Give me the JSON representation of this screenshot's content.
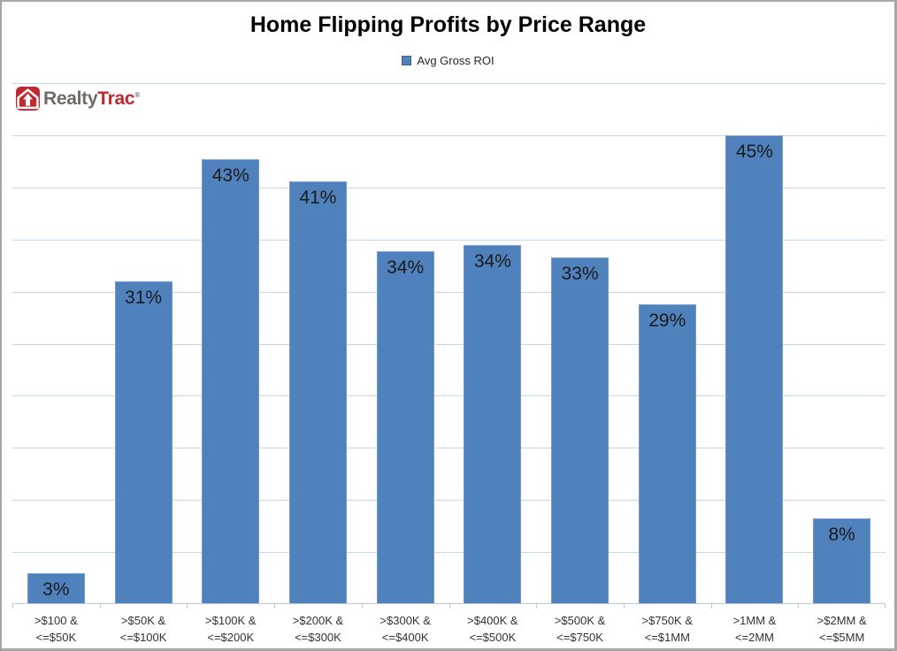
{
  "header": {
    "title": "Home Flipping Profits by Price Range",
    "legend": {
      "label": "Avg Gross ROI",
      "swatch_color": "#4F81BD"
    }
  },
  "logo": {
    "name": "RealtyTrac",
    "part1": "Realty",
    "part2": "Trac",
    "reg_mark": "®",
    "icon": "house-arrow-icon",
    "icon_color": "#C0282E",
    "part1_color": "#6F6B64",
    "part2_color": "#C1272D"
  },
  "chart_data": {
    "type": "bar",
    "title": "Home Flipping Profits by Price Range",
    "legend": [
      "Avg Gross ROI"
    ],
    "legend_position": "top",
    "xlabel": "",
    "ylabel": "",
    "ylim": [
      0,
      50
    ],
    "grid": true,
    "grid_step": 5,
    "y_axis_labels_visible": false,
    "categories": [
      ">$100 & <=$50K",
      ">$50K & <=$100K",
      ">$100K & <=$200K",
      ">$200K & <=$300K",
      ">$300K & <=$400K",
      ">$400K & <=$500K",
      ">$500K & <=$750K",
      ">$750K & <=$1MM",
      ">1MM & <=2MM",
      ">$2MM & <=$5MM"
    ],
    "category_lines": [
      [
        ">$100 &",
        "<=$50K"
      ],
      [
        ">$50K &",
        "<=$100K"
      ],
      [
        ">$100K &",
        "<=$200K"
      ],
      [
        ">$200K &",
        "<=$300K"
      ],
      [
        ">$300K &",
        "<=$400K"
      ],
      [
        ">$400K &",
        "<=$500K"
      ],
      [
        ">$500K &",
        "<=$750K"
      ],
      [
        ">$750K &",
        "<=$1MM"
      ],
      [
        ">1MM &",
        "<=2MM"
      ],
      [
        ">$2MM &",
        "<=$5MM"
      ]
    ],
    "series": [
      {
        "name": "Avg Gross ROI",
        "values": [
          3,
          31,
          43,
          41,
          34,
          34,
          33,
          29,
          45,
          8
        ],
        "data_labels": [
          "3%",
          "31%",
          "43%",
          "41%",
          "34%",
          "34%",
          "33%",
          "29%",
          "45%",
          "8%"
        ],
        "display_heights": [
          3.0,
          31.0,
          42.7,
          40.6,
          33.9,
          34.5,
          33.3,
          28.8,
          45.0,
          8.2
        ]
      }
    ],
    "colors": {
      "bar": "#4F81BD",
      "gridline": "#C7D4E9",
      "axis": "#B9C7DD",
      "data_label": "#1B1B1B"
    }
  }
}
